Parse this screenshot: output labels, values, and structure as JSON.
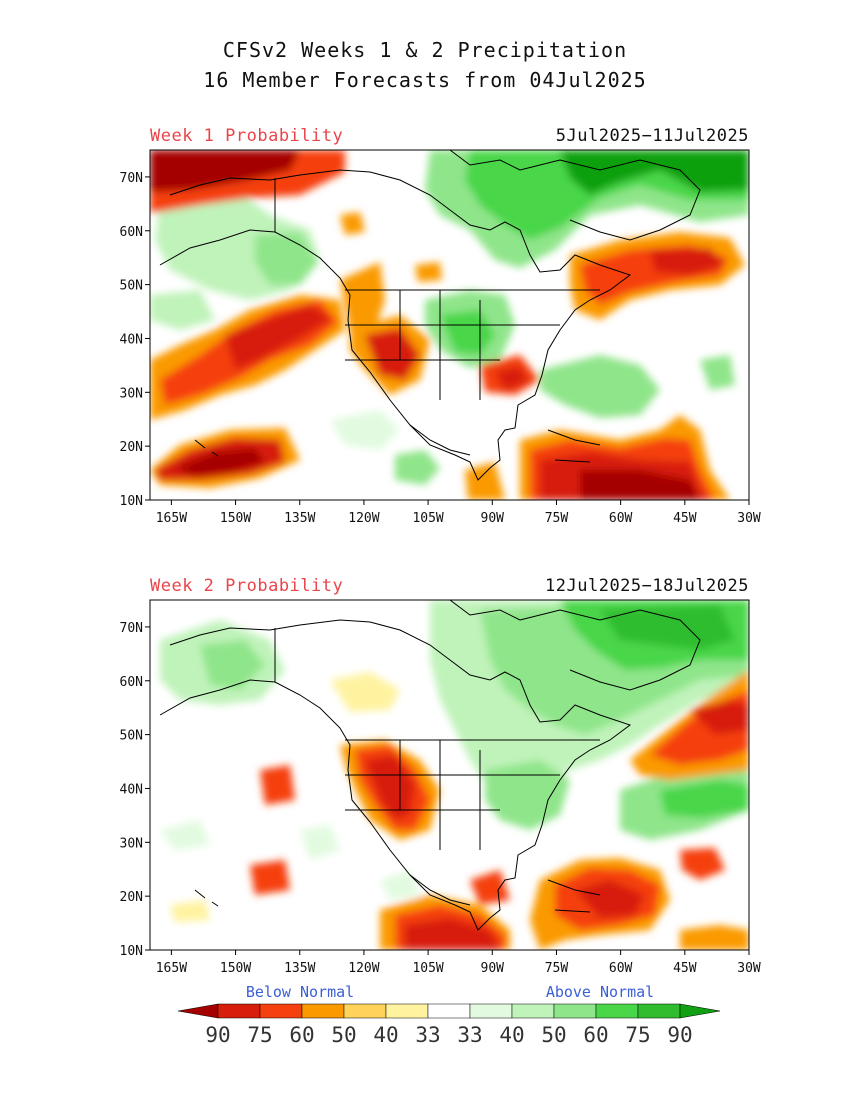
{
  "title": {
    "line1": "CFSv2 Weeks 1 & 2 Precipitation",
    "line2": "16 Member Forecasts from 04Jul2025"
  },
  "panels": [
    {
      "label": "Week 1 Probability",
      "dates": "5Jul2025−11Jul2025"
    },
    {
      "label": "Week 2 Probability",
      "dates": "12Jul2025−18Jul2025"
    }
  ],
  "axes": {
    "lon_ticks": [
      "165W",
      "150W",
      "135W",
      "120W",
      "105W",
      "90W",
      "75W",
      "60W",
      "45W",
      "30W"
    ],
    "lat_ticks": [
      "70N",
      "60N",
      "50N",
      "40N",
      "30N",
      "20N",
      "10N"
    ],
    "lon_range": [
      -170,
      -30
    ],
    "lat_range": [
      10,
      75
    ]
  },
  "legend": {
    "below_label": "Below Normal",
    "above_label": "Above Normal",
    "values": [
      "90",
      "75",
      "60",
      "50",
      "40",
      "33",
      "33",
      "40",
      "50",
      "60",
      "75",
      "90"
    ],
    "colors": [
      "#a50000",
      "#d71e0b",
      "#f5410f",
      "#fa9a00",
      "#ffd35a",
      "#fff3a0",
      "#ffffff",
      "#e2fbe0",
      "#c0f3ba",
      "#8fe58a",
      "#4ad649",
      "#2fbd2f",
      "#11a011"
    ]
  }
}
